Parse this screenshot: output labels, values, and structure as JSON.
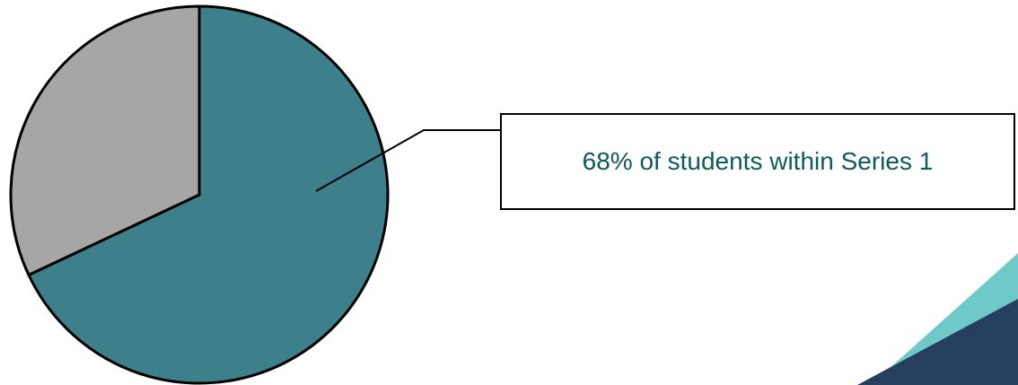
{
  "chart_data": {
    "type": "pie",
    "slices": [
      {
        "value": 68,
        "color": "#3d7f8a"
      },
      {
        "value": 32,
        "color": "#a6a6a6"
      }
    ],
    "annotations": [
      {
        "text": "68% of students within Series 1",
        "target_slice": 0
      }
    ],
    "start_angle_deg": 0,
    "direction": "clockwise"
  },
  "colors": {
    "accent_text": "#0f5a5d",
    "decor_light": "#6fc9c9",
    "decor_dark": "#263f5e",
    "outline": "#000000"
  }
}
